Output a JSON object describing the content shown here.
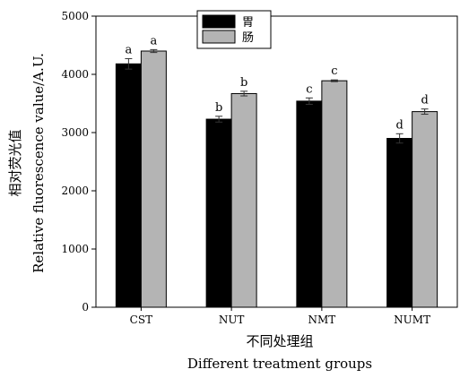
{
  "chart_data": {
    "type": "bar",
    "categories": [
      "CST",
      "NUT",
      "NMT",
      "NUMT"
    ],
    "series": [
      {
        "name": "胃",
        "color": "#000000",
        "values": [
          4180,
          3230,
          3540,
          2900
        ],
        "errors": [
          90,
          50,
          55,
          80
        ],
        "significance": [
          "a",
          "b",
          "c",
          "d"
        ]
      },
      {
        "name": "肠",
        "color": "#b4b4b4",
        "values": [
          4400,
          3670,
          3890,
          3360
        ],
        "errors": [
          25,
          40,
          15,
          45
        ],
        "significance": [
          "a",
          "b",
          "c",
          "d"
        ]
      }
    ],
    "xlabel": [
      "不同处理组",
      "Different  treatment  groups"
    ],
    "ylabel": [
      "相对荧光值",
      "Relative  fluorescence  value/A.U."
    ],
    "ylim": [
      0,
      5000
    ],
    "yticks": [
      0,
      1000,
      2000,
      3000,
      4000,
      5000
    ],
    "grid": false,
    "legend_position": "top-center"
  }
}
